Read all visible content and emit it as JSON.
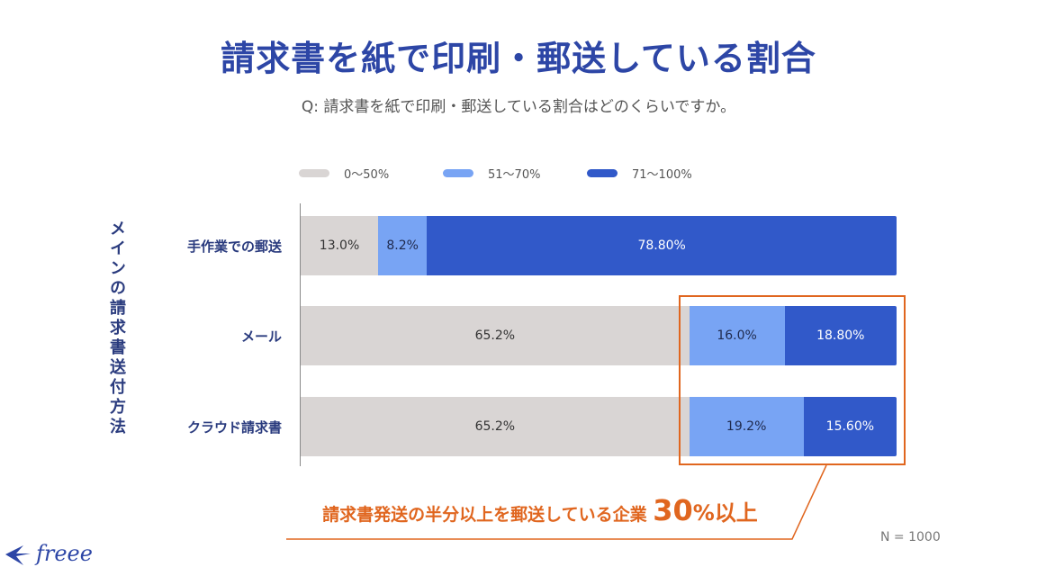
{
  "title": "請求書を紙で印刷・郵送している割合",
  "subtitle": "Q: 請求書を紙で印刷・郵送している割合はどのくらいですか。",
  "y_axis_title": "メインの請求書送付方法",
  "callout": {
    "text": "請求書発送の半分以上を郵送している企業",
    "number": "30",
    "unit": "%以上"
  },
  "n_label": "N = 1000",
  "logo": {
    "text": "freee"
  },
  "colors": {
    "gray": "#d9d5d4",
    "light_blue": "#78a4f4",
    "dark_blue": "#3159c9",
    "title": "#2d46a6",
    "accent": "#e0661f"
  },
  "chart_data": {
    "type": "bar",
    "orientation": "horizontal",
    "stacked": true,
    "categories": [
      "手作業での郵送",
      "メール",
      "クラウド請求書"
    ],
    "series": [
      {
        "name": "0〜50%",
        "color": "#d9d5d4",
        "text_color": "#333333",
        "values": [
          13.0,
          65.2,
          65.2
        ],
        "labels": [
          "13.0%",
          "65.2%",
          "65.2%"
        ]
      },
      {
        "name": "51〜70%",
        "color": "#78a4f4",
        "text_color": "#1f2a4d",
        "values": [
          8.2,
          16.0,
          19.2
        ],
        "labels": [
          "8.2%",
          "16.0%",
          "19.2%"
        ]
      },
      {
        "name": "71〜100%",
        "color": "#3159c9",
        "text_color": "#ffffff",
        "values": [
          78.8,
          18.8,
          15.6
        ],
        "labels": [
          "78.80%",
          "18.80%",
          "15.60%"
        ]
      }
    ],
    "xlim": [
      0,
      100
    ],
    "legend": "top",
    "grid": false
  }
}
